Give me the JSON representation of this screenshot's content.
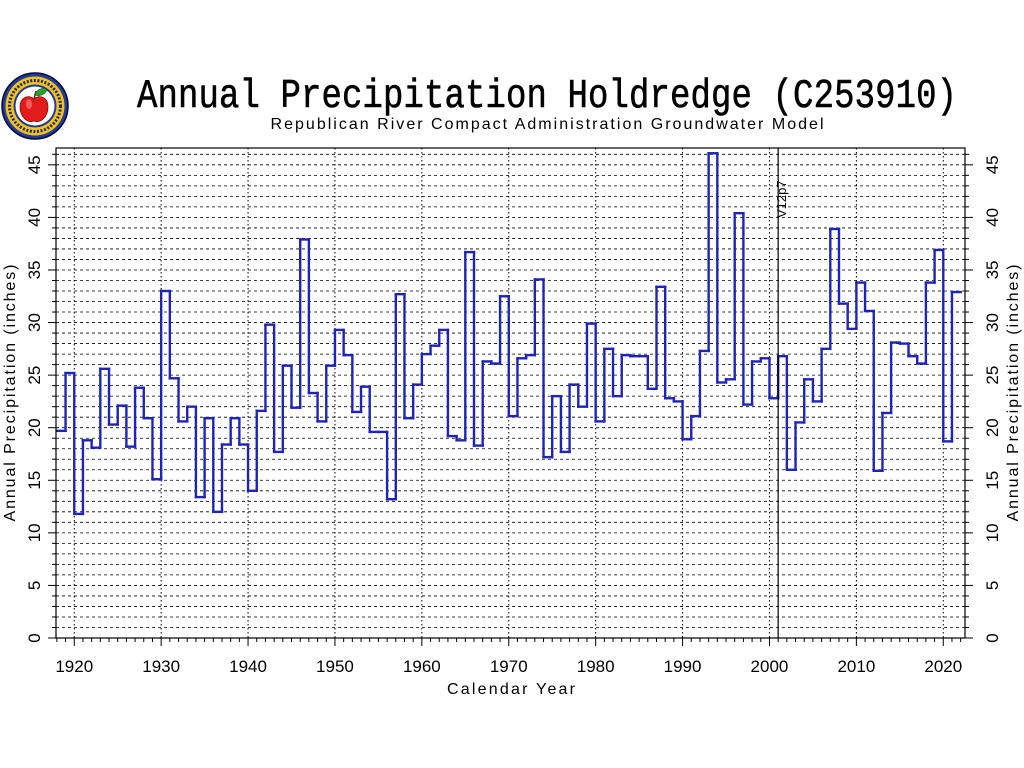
{
  "logo": {
    "icon": "apple-seal-logo"
  },
  "chart_data": {
    "type": "line",
    "drawstyle": "steps-post",
    "title": "Annual Precipitation Holdredge (C253910)",
    "subtitle": "Republican River Compact Administration Groundwater Model",
    "xlabel": "Calendar Year",
    "ylabel": "Annual Precipitation (inches)",
    "xlim": [
      1917.9,
      2022.5
    ],
    "ylim": [
      0,
      46.6
    ],
    "x_ticks": [
      1920,
      1930,
      1940,
      1950,
      1960,
      1970,
      1980,
      1990,
      2000,
      2010,
      2020
    ],
    "y_ticks": [
      0,
      5,
      10,
      15,
      20,
      25,
      30,
      35,
      40,
      45
    ],
    "grid": true,
    "line_color": "#1f24b8",
    "series": [
      {
        "x": [
          1918,
          1919,
          1920,
          1921,
          1922,
          1923,
          1924,
          1925,
          1926,
          1927,
          1928,
          1929,
          1930,
          1931,
          1932,
          1933,
          1934,
          1935,
          1936,
          1937,
          1938,
          1939,
          1940,
          1941,
          1942,
          1943,
          1944,
          1945,
          1946,
          1947,
          1948,
          1949,
          1950,
          1951,
          1952,
          1953,
          1954,
          1955,
          1956,
          1957,
          1958,
          1959,
          1960,
          1961,
          1962,
          1963,
          1964,
          1965,
          1966,
          1967,
          1968,
          1969,
          1970,
          1971,
          1972,
          1973,
          1974,
          1975,
          1976,
          1977,
          1978,
          1979,
          1980,
          1981,
          1982,
          1983,
          1984,
          1985,
          1986,
          1987,
          1988,
          1989,
          1990,
          1991,
          1992,
          1993,
          1994,
          1995,
          1996,
          1997,
          1998,
          1999,
          2000,
          2001,
          2002,
          2003,
          2004,
          2005,
          2006,
          2007,
          2008,
          2009,
          2010,
          2011,
          2012,
          2013,
          2014,
          2015,
          2016,
          2017,
          2018,
          2019,
          2020,
          2021
        ],
        "values": [
          19.7,
          25.2,
          11.8,
          18.8,
          18.1,
          25.6,
          20.3,
          22.1,
          18.2,
          23.8,
          20.9,
          15.1,
          33.0,
          24.7,
          20.6,
          22.0,
          13.4,
          20.9,
          12.0,
          18.4,
          20.9,
          18.4,
          14.0,
          21.6,
          29.8,
          17.7,
          25.9,
          21.9,
          37.9,
          23.3,
          20.6,
          25.9,
          29.3,
          26.9,
          21.5,
          23.9,
          19.6,
          19.6,
          13.2,
          32.7,
          20.9,
          24.1,
          27.0,
          27.8,
          29.3,
          19.2,
          18.8,
          36.7,
          18.3,
          26.3,
          26.1,
          32.5,
          21.1,
          26.6,
          26.9,
          34.1,
          17.2,
          23.0,
          17.7,
          24.1,
          22.0,
          29.9,
          20.6,
          27.5,
          23.0,
          26.9,
          26.8,
          26.8,
          23.7,
          33.4,
          22.8,
          22.5,
          18.9,
          21.1,
          27.3,
          46.1,
          24.3,
          24.6,
          40.4,
          22.2,
          26.3,
          26.6,
          22.8,
          26.8,
          16.0,
          20.5,
          24.6,
          22.5,
          27.5,
          38.9,
          31.8,
          29.4,
          33.8,
          31.1,
          15.9,
          21.4,
          28.1,
          28.0,
          26.8,
          26.1,
          33.8,
          36.9,
          18.7,
          32.9
        ]
      }
    ],
    "annotations": [
      {
        "x": 2001,
        "text": "V12p7"
      }
    ]
  }
}
